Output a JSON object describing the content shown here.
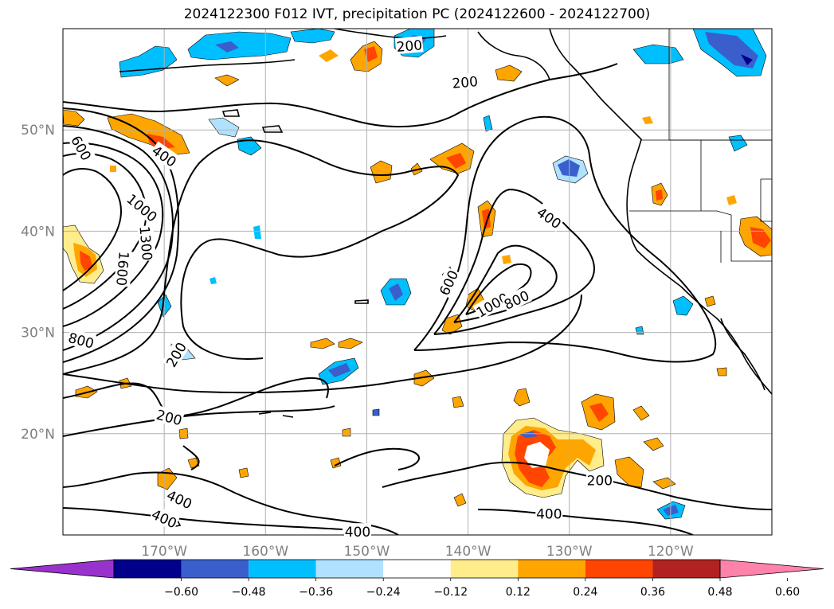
{
  "title": "2024122300 F012 IVT, precipitation PC (2024122600 - 2024122700)",
  "map": {
    "lat_range": [
      10,
      60
    ],
    "lon_range": [
      -180,
      -110
    ],
    "lat_ticks": [
      {
        "value": 20,
        "label": "20°N"
      },
      {
        "value": 30,
        "label": "30°N"
      },
      {
        "value": 40,
        "label": "40°N"
      },
      {
        "value": 50,
        "label": "50°N"
      }
    ],
    "lon_ticks": [
      {
        "value": -170,
        "label": "170°W"
      },
      {
        "value": -160,
        "label": "160°W"
      },
      {
        "value": -150,
        "label": "150°W"
      },
      {
        "value": -140,
        "label": "140°W"
      },
      {
        "value": -130,
        "label": "130°W"
      },
      {
        "value": -120,
        "label": "120°W"
      }
    ],
    "grid": true,
    "contour_labels": [
      {
        "text": "200",
        "lon": -145.8,
        "lat": 58.3,
        "rot": -5
      },
      {
        "text": "200",
        "lon": -140.3,
        "lat": 54.7,
        "rot": -5
      },
      {
        "text": "600",
        "lon": -178.2,
        "lat": 48.2,
        "rot": 60
      },
      {
        "text": "400",
        "lon": -170,
        "lat": 47.4,
        "rot": 35
      },
      {
        "text": "1000",
        "lon": -172.2,
        "lat": 42.3,
        "rot": 40
      },
      {
        "text": "1300",
        "lon": -171.8,
        "lat": 38.8,
        "rot": 85
      },
      {
        "text": "1600",
        "lon": -174.1,
        "lat": 36.3,
        "rot": 95
      },
      {
        "text": "400",
        "lon": -132,
        "lat": 41.3,
        "rot": 35
      },
      {
        "text": "600",
        "lon": -141.9,
        "lat": 34.9,
        "rot": -65
      },
      {
        "text": "1000",
        "lon": -137.6,
        "lat": 32.7,
        "rot": -30
      },
      {
        "text": "800",
        "lon": -135.2,
        "lat": 33.2,
        "rot": -25
      },
      {
        "text": "800",
        "lon": -178.2,
        "lat": 29.2,
        "rot": 15
      },
      {
        "text": "200",
        "lon": -168.8,
        "lat": 27.8,
        "rot": -60
      },
      {
        "text": "200",
        "lon": -169.5,
        "lat": 21.6,
        "rot": 15
      },
      {
        "text": "200",
        "lon": -127,
        "lat": 15.4,
        "rot": 0
      },
      {
        "text": "400",
        "lon": -168.5,
        "lat": 13.5,
        "rot": 25
      },
      {
        "text": "400",
        "lon": -170,
        "lat": 11.6,
        "rot": 25
      },
      {
        "text": "400",
        "lon": -150.9,
        "lat": 10.3,
        "rot": 0
      },
      {
        "text": "400",
        "lon": -132,
        "lat": 12.1,
        "rot": 0
      }
    ]
  },
  "colorbar": {
    "extend": "both",
    "colors": [
      "#9932cc",
      "#00008b",
      "#3a5fcd",
      "#00bfff",
      "#b0e2ff",
      "#ffffff",
      "#ffec8b",
      "#ffa500",
      "#ff4500",
      "#b22222",
      "#ff82ab"
    ],
    "labels": [
      "−0.60",
      "−0.48",
      "−0.36",
      "−0.24",
      "−0.12",
      "0.12",
      "0.24",
      "0.36",
      "0.48",
      "0.60"
    ]
  }
}
